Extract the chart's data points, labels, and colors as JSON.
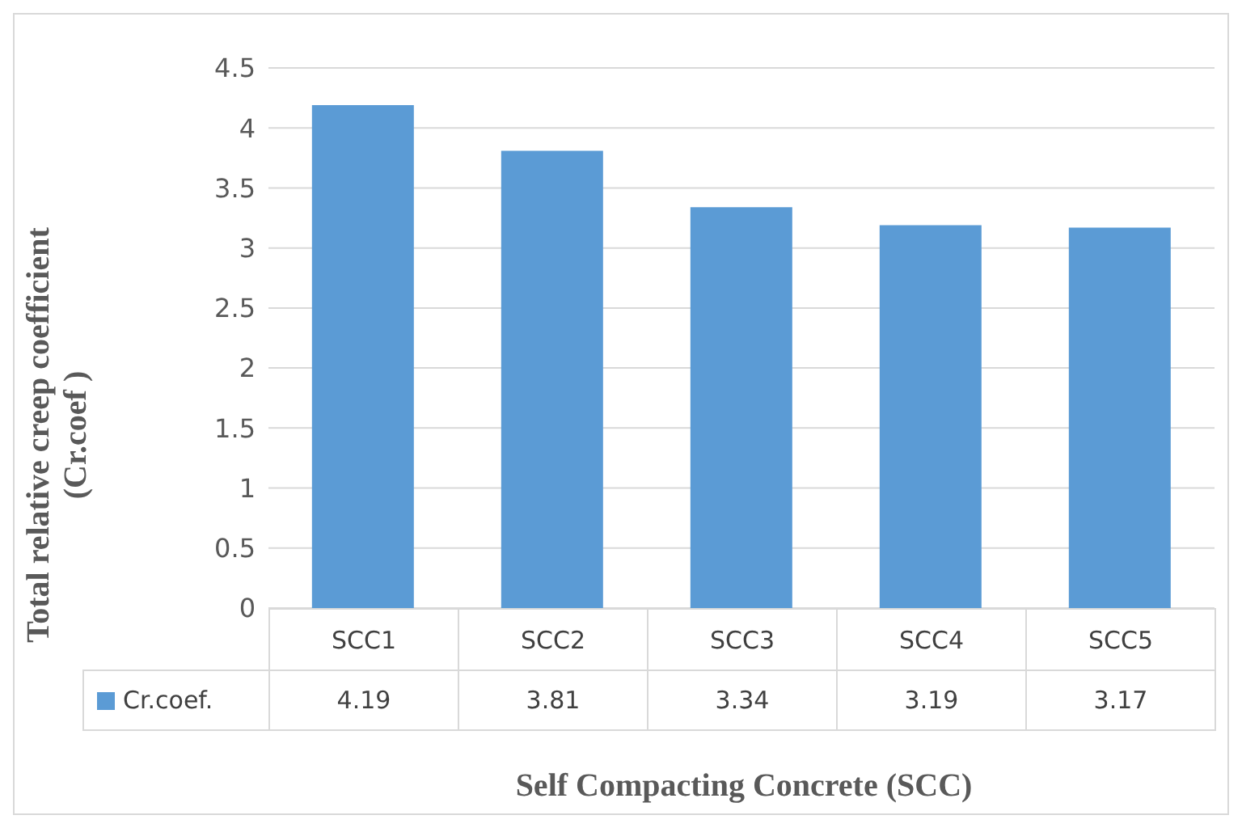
{
  "chart_data": {
    "type": "bar",
    "xlabel": "Self Compacting Concrete (SCC)",
    "ylabel": "Total relative creep coefficient\n(Cr.coef )",
    "categories": [
      "SCC1",
      "SCC2",
      "SCC3",
      "SCC4",
      "SCC5"
    ],
    "series": [
      {
        "name": "Cr.coef.",
        "color": "#5b9bd5",
        "values": [
          4.19,
          3.81,
          3.34,
          3.19,
          3.17
        ]
      }
    ],
    "ylim": [
      0,
      4.5
    ],
    "yticks": [
      0,
      0.5,
      1,
      1.5,
      2,
      2.5,
      3,
      3.5,
      4,
      4.5
    ],
    "grid": "y",
    "legend": "bottom left",
    "data_labels": true
  }
}
